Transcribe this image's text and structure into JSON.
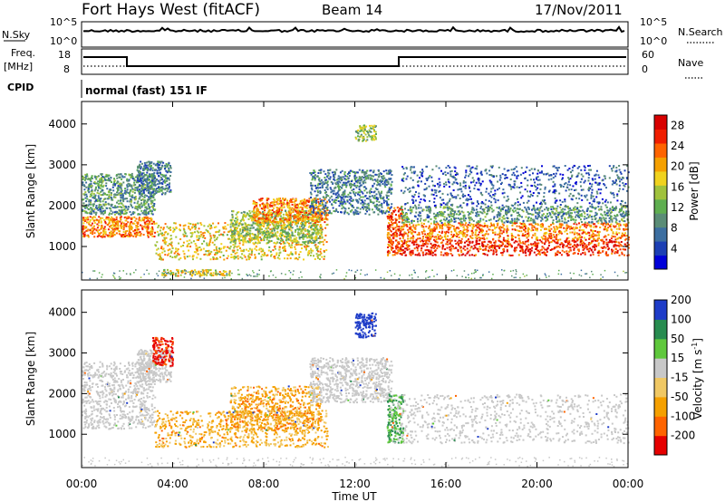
{
  "header": {
    "station": "Fort Hays West (fitACF)",
    "beam": "Beam 14",
    "date": "17/Nov/2011"
  },
  "strip_labels": {
    "nsky": "N.Sky",
    "nsky_ticks": [
      "10^5",
      "10^0"
    ],
    "nsearch": "N.Search",
    "nsearch_ticks": [
      "10^5",
      "10^0"
    ],
    "freq_line1": "Freq.",
    "freq_line2": "[MHz]",
    "freq_ticks": [
      "18",
      "8"
    ],
    "nave": "Nave",
    "nave_ticks": [
      "60",
      "0"
    ],
    "cpid": "CPID",
    "cpid_value": "normal (fast) 151 IF"
  },
  "chart_data": [
    {
      "type": "heatmap",
      "name": "power",
      "ylabel": "Slant Range [km]",
      "yticks": [
        "1000",
        "2000",
        "3000",
        "4000"
      ],
      "ylim": [
        180,
        4550
      ],
      "colorbar": {
        "label": "Power [dB]",
        "ticks": [
          "4",
          "8",
          "12",
          "16",
          "20",
          "24",
          "28"
        ],
        "range": [
          0,
          30
        ],
        "colors": [
          "#0000d8",
          "#1c3fb4",
          "#3c6ea0",
          "#5a8c76",
          "#5fae50",
          "#a0c23c",
          "#f0d21e",
          "#f5a000",
          "#ff6400",
          "#f01e00",
          "#d80000"
        ]
      },
      "regions": [
        {
          "t": [
            0.0,
            3.2
          ],
          "r": [
            1250,
            1750
          ],
          "level": 22
        },
        {
          "t": [
            0.0,
            3.2
          ],
          "r": [
            1800,
            2800
          ],
          "level": 10
        },
        {
          "t": [
            2.4,
            3.9
          ],
          "r": [
            2300,
            3100
          ],
          "level": 8
        },
        {
          "t": [
            3.2,
            10.8
          ],
          "r": [
            700,
            1600
          ],
          "level": 18
        },
        {
          "t": [
            6.5,
            10.5
          ],
          "r": [
            1100,
            1900
          ],
          "level": 14
        },
        {
          "t": [
            7.5,
            10.8
          ],
          "r": [
            1600,
            2200
          ],
          "level": 22
        },
        {
          "t": [
            10.0,
            13.6
          ],
          "r": [
            1800,
            2900
          ],
          "level": 8
        },
        {
          "t": [
            12.0,
            12.9
          ],
          "r": [
            3600,
            4000
          ],
          "level": 14
        },
        {
          "t": [
            3.5,
            6.5
          ],
          "r": [
            300,
            450
          ],
          "level": 18
        },
        {
          "t": [
            13.4,
            14.1
          ],
          "r": [
            800,
            2000
          ],
          "level": 24
        },
        {
          "t": [
            14.0,
            24.0
          ],
          "r": [
            800,
            1200
          ],
          "level": 26
        },
        {
          "t": [
            14.0,
            24.0
          ],
          "r": [
            1200,
            1600
          ],
          "level": 22
        },
        {
          "t": [
            14.0,
            24.0
          ],
          "r": [
            1600,
            2000
          ],
          "level": 10
        },
        {
          "t": [
            14.0,
            24.0
          ],
          "r": [
            2000,
            3000
          ],
          "level": 6
        }
      ]
    },
    {
      "type": "heatmap",
      "name": "velocity",
      "xlabel": "Time UT",
      "xticks": [
        "00:00",
        "04:00",
        "08:00",
        "12:00",
        "16:00",
        "20:00",
        "00:00"
      ],
      "xlim": [
        0,
        24
      ],
      "ylabel": "Slant Range [km]",
      "yticks": [
        "1000",
        "2000",
        "3000",
        "4000"
      ],
      "ylim": [
        180,
        4550
      ],
      "colorbar": {
        "label": "Velocity [m s^-1]",
        "label_main": "Velocity [m s",
        "label_sup": "-1",
        "label_end": "]",
        "ticks": [
          "-200",
          "-100",
          "-50",
          "-15",
          "15",
          "50",
          "100",
          "200"
        ],
        "colors": [
          "#e60000",
          "#ff6400",
          "#f5a000",
          "#f0c864",
          "#c8c8c8",
          "#5fc83c",
          "#288c50",
          "#1e3cc8"
        ]
      },
      "regions": [
        {
          "t": [
            0.0,
            3.2
          ],
          "r": [
            1150,
            2800
          ],
          "v": 0
        },
        {
          "t": [
            2.4,
            3.9
          ],
          "r": [
            2300,
            3100
          ],
          "v": 0
        },
        {
          "t": [
            3.1,
            4.0
          ],
          "r": [
            2700,
            3400
          ],
          "v": -220
        },
        {
          "t": [
            3.2,
            10.8
          ],
          "r": [
            700,
            1600
          ],
          "v": -60
        },
        {
          "t": [
            6.5,
            10.5
          ],
          "r": [
            1100,
            2200
          ],
          "v": -70
        },
        {
          "t": [
            10.0,
            13.6
          ],
          "r": [
            1800,
            2900
          ],
          "v": 0
        },
        {
          "t": [
            12.0,
            12.9
          ],
          "r": [
            3400,
            4000
          ],
          "v": 150
        },
        {
          "t": [
            13.4,
            14.1
          ],
          "r": [
            800,
            2000
          ],
          "v": 40
        },
        {
          "t": [
            14.0,
            24.0
          ],
          "r": [
            800,
            2000
          ],
          "v": 0
        }
      ]
    }
  ]
}
